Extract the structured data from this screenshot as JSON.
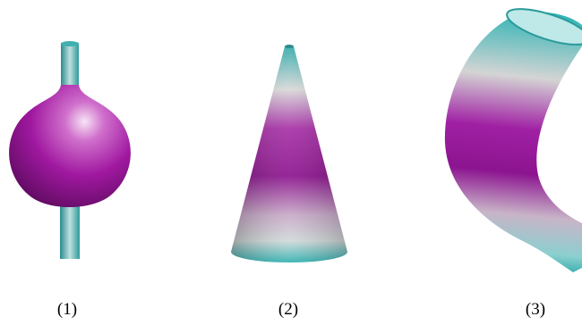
{
  "figure": {
    "panels": [
      {
        "label": "(1)"
      },
      {
        "label": "(2)"
      },
      {
        "label": "(3)"
      }
    ]
  }
}
